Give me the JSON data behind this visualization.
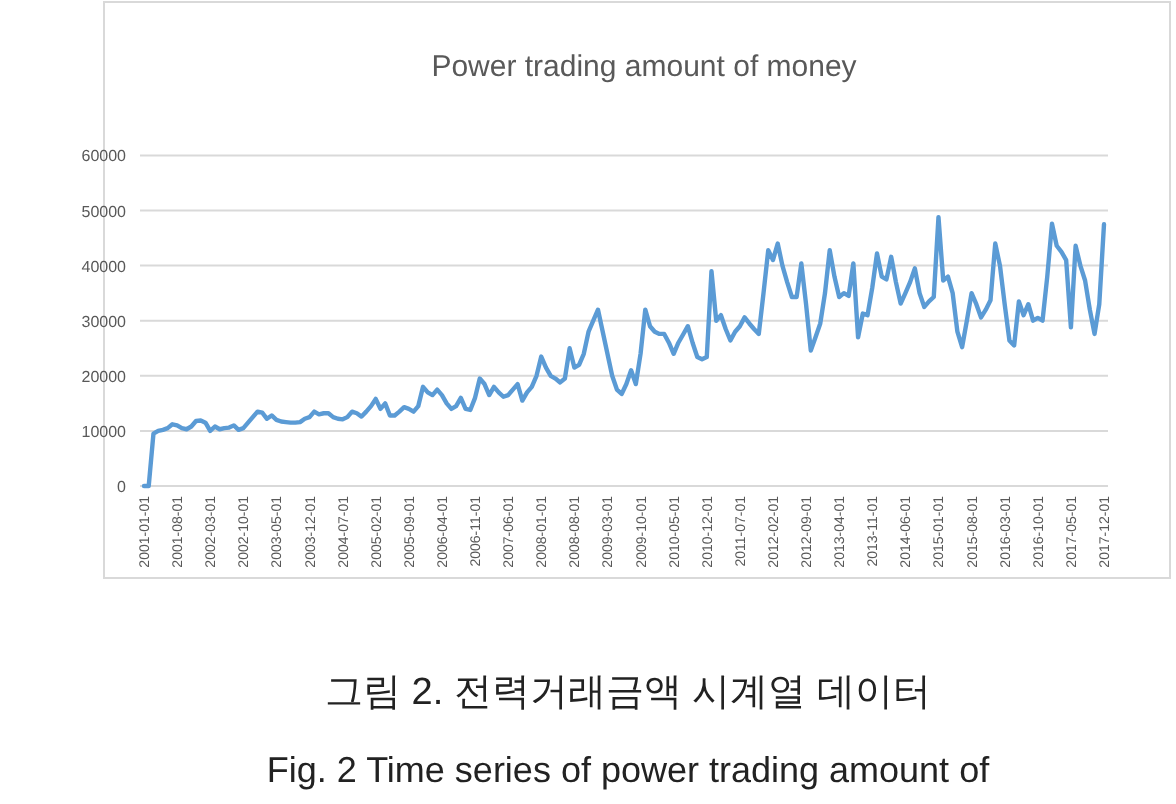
{
  "chart_data": {
    "type": "line",
    "title": "Power trading amount of money",
    "categories": [
      "2001-01-01",
      null,
      null,
      null,
      null,
      null,
      null,
      "2001-08-01",
      null,
      null,
      null,
      null,
      null,
      null,
      "2002-03-01",
      null,
      null,
      null,
      null,
      null,
      null,
      "2002-10-01",
      null,
      null,
      null,
      null,
      null,
      null,
      "2003-05-01",
      null,
      null,
      null,
      null,
      null,
      null,
      "2003-12-01",
      null,
      null,
      null,
      null,
      null,
      null,
      "2004-07-01",
      null,
      null,
      null,
      null,
      null,
      null,
      "2005-02-01",
      null,
      null,
      null,
      null,
      null,
      null,
      "2005-09-01",
      null,
      null,
      null,
      null,
      null,
      null,
      "2006-04-01",
      null,
      null,
      null,
      null,
      null,
      null,
      "2006-11-01",
      null,
      null,
      null,
      null,
      null,
      null,
      "2007-06-01",
      null,
      null,
      null,
      null,
      null,
      null,
      "2008-01-01",
      null,
      null,
      null,
      null,
      null,
      null,
      "2008-08-01",
      null,
      null,
      null,
      null,
      null,
      null,
      "2009-03-01",
      null,
      null,
      null,
      null,
      null,
      null,
      "2009-10-01",
      null,
      null,
      null,
      null,
      null,
      null,
      "2010-05-01",
      null,
      null,
      null,
      null,
      null,
      null,
      "2010-12-01",
      null,
      null,
      null,
      null,
      null,
      null,
      "2011-07-01",
      null,
      null,
      null,
      null,
      null,
      null,
      "2012-02-01",
      null,
      null,
      null,
      null,
      null,
      null,
      "2012-09-01",
      null,
      null,
      null,
      null,
      null,
      null,
      "2013-04-01",
      null,
      null,
      null,
      null,
      null,
      null,
      "2013-11-01",
      null,
      null,
      null,
      null,
      null,
      null,
      "2014-06-01",
      null,
      null,
      null,
      null,
      null,
      null,
      "2015-01-01",
      null,
      null,
      null,
      null,
      null,
      null,
      "2015-08-01",
      null,
      null,
      null,
      null,
      null,
      null,
      "2016-03-01",
      null,
      null,
      null,
      null,
      null,
      null,
      "2016-10-01",
      null,
      null,
      null,
      null,
      null,
      null,
      "2017-05-01",
      null,
      null,
      null,
      null,
      null,
      null,
      "2017-12-01"
    ],
    "series": [
      {
        "color": "#5b9bd5",
        "values": [
          0,
          0,
          9500,
          10000,
          10200,
          10500,
          11200,
          11000,
          10500,
          10300,
          10800,
          11800,
          11900,
          11500,
          10000,
          10800,
          10300,
          10500,
          10600,
          11000,
          10200,
          10500,
          11500,
          12500,
          13500,
          13300,
          12200,
          12800,
          12000,
          11700,
          11600,
          11500,
          11500,
          11600,
          12200,
          12500,
          13500,
          13000,
          13200,
          13200,
          12500,
          12200,
          12100,
          12500,
          13500,
          13200,
          12600,
          13500,
          14500,
          15800,
          14000,
          15000,
          12800,
          12800,
          13500,
          14300,
          14000,
          13500,
          14500,
          18000,
          17000,
          16500,
          17500,
          16500,
          15000,
          14000,
          14500,
          16000,
          14000,
          13800,
          16000,
          19500,
          18500,
          16500,
          18000,
          17000,
          16200,
          16500,
          17500,
          18500,
          15500,
          17000,
          18000,
          20000,
          23500,
          21500,
          20000,
          19500,
          18800,
          19500,
          25000,
          21500,
          22000,
          24000,
          28000,
          30000,
          32000,
          28000,
          24000,
          20000,
          17500,
          16700,
          18500,
          21000,
          18500,
          24000,
          32000,
          29000,
          28000,
          27600,
          27600,
          26000,
          24000,
          26000,
          27500,
          29000,
          26000,
          23400,
          23000,
          23400,
          39000,
          30000,
          31000,
          28500,
          26400,
          28000,
          29000,
          30600,
          29500,
          28500,
          27600,
          35000,
          42800,
          41000,
          44000,
          40000,
          37000,
          34300,
          34300,
          40400,
          33000,
          24600,
          27000,
          29500,
          35000,
          42800,
          38000,
          34300,
          35000,
          34500,
          40400,
          27000,
          31300,
          31000,
          36000,
          42200,
          38000,
          37500,
          41600,
          37000,
          33100,
          35000,
          37000,
          39500,
          35000,
          32500,
          33500,
          34300,
          48800,
          37300,
          38000,
          35000,
          28000,
          25200,
          30000,
          35000,
          33000,
          30600,
          32000,
          33700,
          44000,
          40000,
          33000,
          26400,
          25500,
          33500,
          31000,
          33000,
          30000,
          30500,
          30000,
          38000,
          47600,
          43600,
          42500,
          41000,
          28800,
          43600,
          40000,
          37300,
          32000,
          27600,
          33000,
          47500
        ]
      }
    ],
    "ylim": [
      0,
      60000
    ],
    "yticks": [
      0,
      10000,
      20000,
      30000,
      40000,
      50000,
      60000
    ],
    "grid": "y",
    "line_style": "solid",
    "annotations": [
      "그림 2. 전력거래금액 시계열 데이터",
      "Fig. 2 Time series of power trading amount of"
    ]
  }
}
